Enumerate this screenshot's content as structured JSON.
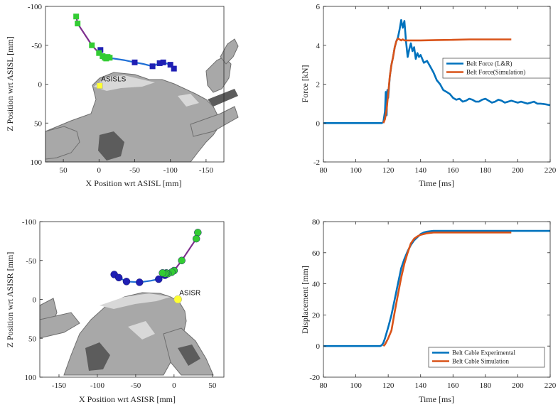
{
  "colors": {
    "blue": "#0072BD",
    "orange": "#D95319",
    "green_marker": "#33cc33",
    "navy_marker": "#1f1fb4",
    "purple_line": "#7e2f8e",
    "blue_line": "#1f6fd6",
    "yellow_marker": "#ffff33",
    "bone_gray": "#a8a8a8"
  },
  "chart_data": [
    {
      "type": "scatter",
      "id": "tl",
      "xlabel": "X Position wrt ASISL [mm]",
      "ylabel": "Z Position wrt ASISL [mm]",
      "xlim": [
        75,
        -175
      ],
      "ylim": [
        100,
        -100
      ],
      "x_reversed": true,
      "y_reversed": true,
      "xticks": [
        50,
        0,
        -50,
        -100,
        -150
      ],
      "yticks": [
        -100,
        -50,
        0,
        50,
        100
      ],
      "marker_shape": "square",
      "landmark": {
        "label": "ASISLS",
        "x": -1,
        "y": 2
      },
      "series": [
        {
          "role": "green_markers",
          "points": [
            [
              32,
              -87
            ],
            [
              30,
              -78
            ],
            [
              10,
              -50
            ],
            [
              0,
              -40
            ],
            [
              -5,
              -36
            ],
            [
              -8,
              -34
            ],
            [
              -10,
              -33
            ],
            [
              -12,
              -35
            ],
            [
              -15,
              -34
            ]
          ]
        },
        {
          "role": "navy_markers",
          "points": [
            [
              -2,
              -44
            ],
            [
              -50,
              -28
            ],
            [
              -75,
              -23
            ],
            [
              -85,
              -27
            ],
            [
              -90,
              -28
            ],
            [
              -100,
              -25
            ],
            [
              -105,
              -20
            ]
          ]
        },
        {
          "role": "purple_path",
          "points": [
            [
              32,
              -87
            ],
            [
              30,
              -78
            ],
            [
              10,
              -50
            ],
            [
              0,
              -40
            ],
            [
              -5,
              -36
            ],
            [
              -10,
              -33
            ]
          ]
        },
        {
          "role": "blue_path",
          "points": [
            [
              -10,
              -33
            ],
            [
              -20,
              -33
            ],
            [
              -35,
              -31
            ],
            [
              -50,
              -28
            ],
            [
              -62,
              -26
            ],
            [
              -75,
              -23
            ],
            [
              -85,
              -27
            ],
            [
              -90,
              -28
            ],
            [
              -100,
              -25
            ],
            [
              -105,
              -20
            ]
          ]
        }
      ]
    },
    {
      "type": "line",
      "id": "tr",
      "xlabel": "Time [ms]",
      "ylabel": "Force [kN]",
      "xlim": [
        80,
        220
      ],
      "ylim": [
        -2,
        6
      ],
      "xticks": [
        80,
        100,
        120,
        140,
        160,
        180,
        200,
        220
      ],
      "yticks": [
        -2,
        0,
        2,
        4,
        6
      ],
      "legend_position": "right",
      "series": [
        {
          "name": "Belt Force (L&R)",
          "color_key": "blue",
          "x": [
            80,
            100,
            116,
            117,
            118,
            118.5,
            119,
            119.5,
            120,
            121,
            122,
            123,
            124,
            125,
            126,
            127,
            128,
            129,
            130,
            131,
            132,
            133,
            134,
            135,
            136,
            137,
            138,
            139,
            140,
            142,
            144,
            146,
            148,
            150,
            152,
            154,
            156,
            158,
            160,
            162,
            164,
            166,
            168,
            170,
            172,
            174,
            176,
            178,
            180,
            182,
            184,
            186,
            188,
            190,
            192,
            194,
            196,
            198,
            200,
            202,
            204,
            206,
            208,
            210,
            212,
            214,
            216,
            218,
            220
          ],
          "y": [
            0,
            0,
            0,
            0.05,
            0.6,
            1.6,
            0.4,
            1.7,
            1.3,
            2.4,
            3.0,
            3.4,
            3.9,
            4.2,
            4.4,
            4.8,
            5.3,
            4.9,
            5.25,
            4.2,
            3.4,
            3.8,
            4.1,
            3.7,
            3.9,
            3.3,
            3.6,
            3.4,
            3.5,
            3.1,
            3.2,
            2.9,
            2.6,
            2.2,
            2.0,
            1.7,
            1.6,
            1.5,
            1.3,
            1.2,
            1.25,
            1.1,
            1.15,
            1.25,
            1.2,
            1.1,
            1.1,
            1.2,
            1.25,
            1.15,
            1.05,
            1.1,
            1.2,
            1.15,
            1.05,
            1.1,
            1.15,
            1.1,
            1.05,
            1.1,
            1.05,
            1.0,
            1.05,
            1.1,
            1.0,
            1.0,
            0.98,
            0.95,
            0.92
          ]
        },
        {
          "name": "Belt Force(Simulation)",
          "color_key": "orange",
          "x": [
            117,
            118,
            119,
            120,
            121,
            122,
            123,
            124,
            125,
            126,
            127,
            128,
            129,
            130,
            135,
            140,
            150,
            160,
            170,
            180,
            190,
            196
          ],
          "y": [
            0,
            0.2,
            0.7,
            1.5,
            2.4,
            3.0,
            3.4,
            3.9,
            4.2,
            4.35,
            4.3,
            4.25,
            4.3,
            4.25,
            4.25,
            4.25,
            4.27,
            4.28,
            4.3,
            4.3,
            4.3,
            4.3
          ]
        }
      ]
    },
    {
      "type": "scatter",
      "id": "bl",
      "xlabel": "X Position wrt ASISR [mm]",
      "ylabel": "Z Position wrt ASISR [mm]",
      "xlim": [
        -175,
        65
      ],
      "ylim": [
        100,
        -100
      ],
      "y_reversed": true,
      "xticks": [
        -150,
        -100,
        -50,
        0,
        50
      ],
      "yticks": [
        -100,
        -50,
        0,
        50,
        100
      ],
      "marker_shape": "circle",
      "landmark": {
        "label": "ASISR",
        "x": 5,
        "y": 0
      },
      "series": [
        {
          "role": "green_markers",
          "points": [
            [
              31,
              -86
            ],
            [
              29,
              -78
            ],
            [
              10,
              -50
            ],
            [
              0,
              -37
            ],
            [
              -3,
              -35
            ],
            [
              -8,
              -33
            ],
            [
              -10,
              -34
            ],
            [
              -12,
              -33
            ],
            [
              -15,
              -34
            ]
          ]
        },
        {
          "role": "navy_markers",
          "points": [
            [
              -78,
              -32
            ],
            [
              -72,
              -28
            ],
            [
              -62,
              -23
            ],
            [
              -45,
              -22
            ],
            [
              -20,
              -26
            ],
            [
              -12,
              -31
            ]
          ]
        },
        {
          "role": "purple_path",
          "points": [
            [
              31,
              -86
            ],
            [
              29,
              -78
            ],
            [
              10,
              -50
            ],
            [
              0,
              -37
            ],
            [
              -5,
              -35
            ],
            [
              -12,
              -33
            ]
          ]
        },
        {
          "role": "blue_path",
          "points": [
            [
              -78,
              -32
            ],
            [
              -72,
              -28
            ],
            [
              -62,
              -23
            ],
            [
              -45,
              -22
            ],
            [
              -30,
              -24
            ],
            [
              -20,
              -26
            ],
            [
              -12,
              -31
            ]
          ]
        }
      ]
    },
    {
      "type": "line",
      "id": "br",
      "xlabel": "Time [ms]",
      "ylabel": "Displacement [mm]",
      "xlim": [
        80,
        220
      ],
      "ylim": [
        -20,
        80
      ],
      "xticks": [
        80,
        100,
        120,
        140,
        160,
        180,
        200,
        220
      ],
      "yticks": [
        -20,
        0,
        20,
        40,
        60,
        80
      ],
      "legend_position": "bottom-right",
      "series": [
        {
          "name": "Belt Cable Experimental",
          "color_key": "blue",
          "x": [
            80,
            100,
            110,
            115,
            116,
            117,
            118,
            120,
            122,
            124,
            126,
            128,
            130,
            132,
            134,
            136,
            138,
            140,
            142,
            144,
            146,
            148,
            150,
            160,
            170,
            180,
            190,
            200,
            210,
            220
          ],
          "y": [
            0,
            0,
            0,
            0,
            0.5,
            2,
            5,
            12,
            20,
            30,
            40,
            50,
            56,
            61,
            65,
            68,
            70,
            72,
            73,
            73.5,
            73.8,
            74,
            74,
            74,
            74,
            74,
            74,
            74,
            74,
            74
          ]
        },
        {
          "name": "Belt Cable Simulation",
          "color_key": "orange",
          "x": [
            117,
            118,
            119,
            120,
            122,
            124,
            126,
            128,
            130,
            132,
            134,
            136,
            138,
            140,
            142,
            144,
            146,
            148,
            150,
            160,
            170,
            180,
            190,
            196
          ],
          "y": [
            0,
            1,
            3,
            5,
            10,
            22,
            33,
            44,
            53,
            60,
            66,
            69,
            70.5,
            71.5,
            72,
            72.5,
            72.8,
            73,
            73,
            73,
            73,
            73,
            73,
            73
          ]
        }
      ]
    }
  ]
}
